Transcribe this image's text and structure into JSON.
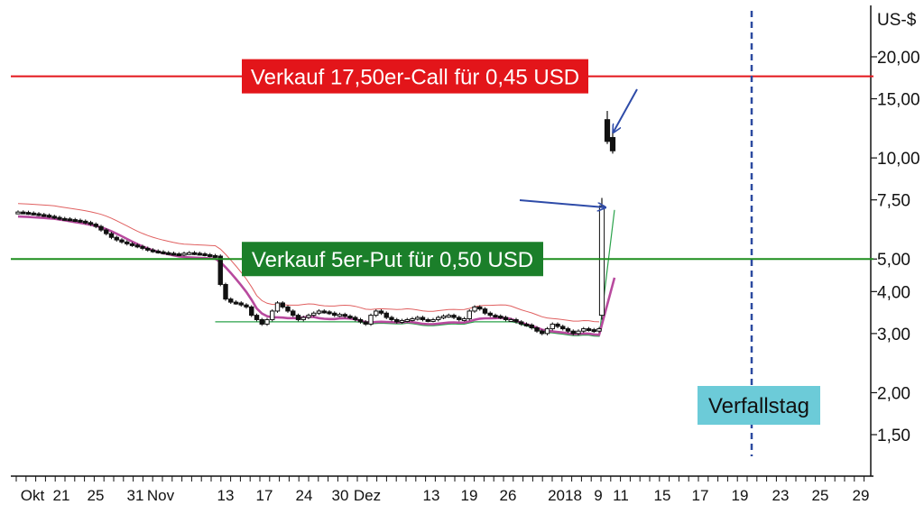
{
  "chart_data": {
    "type": "candlestick",
    "y_unit": "US-$",
    "y_scale": "log",
    "y_ticks": [
      {
        "v": 20,
        "label": "20,00"
      },
      {
        "v": 15,
        "label": "15,00"
      },
      {
        "v": 10,
        "label": "10,00"
      },
      {
        "v": 7.5,
        "label": "7,50"
      },
      {
        "v": 5,
        "label": "5,00"
      },
      {
        "v": 4,
        "label": "4,00"
      },
      {
        "v": 3,
        "label": "3,00"
      },
      {
        "v": 2,
        "label": "2,00"
      },
      {
        "v": 1.5,
        "label": "1,50"
      }
    ],
    "x_ticks": [
      "Okt",
      "21",
      "25",
      "31",
      "Nov",
      "13",
      "17",
      "24",
      "30",
      "Dez",
      "13",
      "19",
      "26",
      "2018",
      "9",
      "11",
      "15",
      "17",
      "19",
      "23",
      "25",
      "29"
    ],
    "horizontal_lines": [
      {
        "value": 17.5,
        "label": "Verkauf 17,50er-Call für 0,45 USD",
        "color": "#e3151a"
      },
      {
        "value": 5.0,
        "label": "Verkauf 5er-Put für 0,50 USD",
        "color": "#1e8e1e"
      }
    ],
    "expiry_label": "Verfallstag",
    "colors": {
      "call_line": "#e3151a",
      "put_line": "#1e8e1e",
      "call_banner_bg": "#e3151a",
      "put_banner_bg": "#1b7f2a",
      "expiry_line": "#2c4aa0",
      "expiry_box_bg": "#6ccbd8",
      "moving_average": "#b84a9e",
      "upper_band": "#e06060",
      "lower_band": "#2aa24a",
      "arrow": "#2e4ba8",
      "candle": "#111111"
    },
    "closes": [
      6.9,
      6.88,
      6.85,
      6.82,
      6.78,
      6.75,
      6.7,
      6.65,
      6.6,
      6.58,
      6.55,
      6.52,
      6.48,
      6.42,
      6.35,
      6.25,
      6.1,
      5.95,
      5.8,
      5.7,
      5.62,
      5.55,
      5.5,
      5.45,
      5.38,
      5.32,
      5.28,
      5.25,
      5.22,
      5.2,
      5.18,
      5.16,
      5.2,
      5.22,
      5.2,
      5.18,
      5.15,
      5.12,
      5.1,
      4.2,
      3.8,
      3.72,
      3.7,
      3.65,
      3.6,
      3.4,
      3.3,
      3.2,
      3.3,
      3.5,
      3.7,
      3.6,
      3.5,
      3.4,
      3.3,
      3.35,
      3.4,
      3.45,
      3.5,
      3.48,
      3.45,
      3.4,
      3.42,
      3.38,
      3.35,
      3.3,
      3.25,
      3.2,
      3.4,
      3.5,
      3.45,
      3.35,
      3.3,
      3.25,
      3.28,
      3.3,
      3.32,
      3.35,
      3.3,
      3.28,
      3.3,
      3.35,
      3.38,
      3.4,
      3.35,
      3.3,
      3.32,
      3.5,
      3.6,
      3.55,
      3.45,
      3.4,
      3.38,
      3.35,
      3.3,
      3.3,
      3.25,
      3.2,
      3.18,
      3.12,
      3.05,
      3.0,
      3.1,
      3.2,
      3.15,
      3.1,
      3.05,
      3.0,
      3.05,
      3.1,
      3.08,
      3.05,
      3.1
    ],
    "spike_candles": [
      {
        "open": 3.4,
        "high": 7.6,
        "low": 3.3,
        "close": 7.2
      },
      {
        "open": 13.0,
        "high": 13.8,
        "low": 11.0,
        "close": 11.2
      },
      {
        "open": 11.5,
        "high": 12.0,
        "low": 10.3,
        "close": 10.5
      }
    ]
  }
}
